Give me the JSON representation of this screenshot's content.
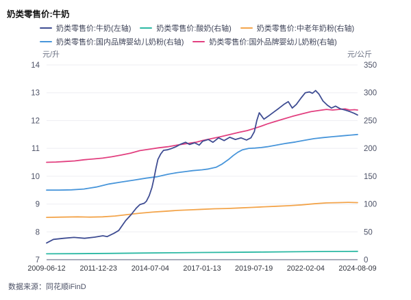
{
  "title": "奶类零售价:牛奶",
  "footer": {
    "source": "数据来源：同花顺iFinD"
  },
  "axes": {
    "left_unit": "元/升",
    "right_unit": "元/公斤",
    "left_ticks": [
      14,
      13,
      12,
      11,
      10,
      9,
      8,
      7
    ],
    "right_ticks": [
      350,
      300,
      250,
      200,
      150,
      100,
      50,
      0
    ],
    "x_ticks": [
      "2009-06-12",
      "2011-12-23",
      "2014-07-04",
      "2017-01-13",
      "2019-07-19",
      "2022-02-04",
      "2024-08-09"
    ]
  },
  "chart_data": {
    "type": "line",
    "title": "奶类零售价:牛奶",
    "xlabel": "",
    "x_tick_labels": [
      "2009-06-12",
      "2011-12-23",
      "2014-07-04",
      "2017-01-13",
      "2019-07-19",
      "2022-02-04",
      "2024-08-09"
    ],
    "x_note": "x encoded as normalized time t (0 = 2009-06-12, 1 = 2024-08-09)",
    "y_left": {
      "label": "元/升",
      "range": [
        7,
        14
      ]
    },
    "y_right": {
      "label": "元/公斤",
      "range": [
        0,
        350
      ]
    },
    "grid": "horizontal",
    "legend_position": "top",
    "series": [
      {
        "name": "奶类零售价:牛奶(左轴)",
        "axis": "left",
        "color": "#3e4c92",
        "points": [
          [
            0,
            7.6
          ],
          [
            0.022,
            7.73
          ],
          [
            0.055,
            7.77
          ],
          [
            0.088,
            7.8
          ],
          [
            0.122,
            7.77
          ],
          [
            0.155,
            7.81
          ],
          [
            0.181,
            7.86
          ],
          [
            0.195,
            7.83
          ],
          [
            0.217,
            7.95
          ],
          [
            0.232,
            8.05
          ],
          [
            0.254,
            8.4
          ],
          [
            0.272,
            8.62
          ],
          [
            0.288,
            8.85
          ],
          [
            0.3,
            8.98
          ],
          [
            0.314,
            9.03
          ],
          [
            0.321,
            9.1
          ],
          [
            0.33,
            9.3
          ],
          [
            0.339,
            9.6
          ],
          [
            0.345,
            9.9
          ],
          [
            0.352,
            10.3
          ],
          [
            0.358,
            10.6
          ],
          [
            0.367,
            10.8
          ],
          [
            0.376,
            10.93
          ],
          [
            0.389,
            10.95
          ],
          [
            0.403,
            11.0
          ],
          [
            0.416,
            11.06
          ],
          [
            0.431,
            11.15
          ],
          [
            0.447,
            11.22
          ],
          [
            0.46,
            11.14
          ],
          [
            0.476,
            11.2
          ],
          [
            0.491,
            11.12
          ],
          [
            0.502,
            11.26
          ],
          [
            0.52,
            11.32
          ],
          [
            0.535,
            11.22
          ],
          [
            0.553,
            11.38
          ],
          [
            0.571,
            11.28
          ],
          [
            0.589,
            11.4
          ],
          [
            0.607,
            11.32
          ],
          [
            0.625,
            11.38
          ],
          [
            0.643,
            11.3
          ],
          [
            0.657,
            11.38
          ],
          [
            0.668,
            11.6
          ],
          [
            0.676,
            12.0
          ],
          [
            0.684,
            12.28
          ],
          [
            0.699,
            12.05
          ],
          [
            0.712,
            12.15
          ],
          [
            0.73,
            12.3
          ],
          [
            0.748,
            12.45
          ],
          [
            0.763,
            12.58
          ],
          [
            0.777,
            12.68
          ],
          [
            0.79,
            12.45
          ],
          [
            0.803,
            12.58
          ],
          [
            0.819,
            12.82
          ],
          [
            0.832,
            13.0
          ],
          [
            0.845,
            13.03
          ],
          [
            0.855,
            12.98
          ],
          [
            0.865,
            13.08
          ],
          [
            0.876,
            12.95
          ],
          [
            0.889,
            12.7
          ],
          [
            0.903,
            12.55
          ],
          [
            0.916,
            12.45
          ],
          [
            0.929,
            12.52
          ],
          [
            0.945,
            12.42
          ],
          [
            0.96,
            12.38
          ],
          [
            0.976,
            12.32
          ],
          [
            0.989,
            12.26
          ],
          [
            1,
            12.2
          ]
        ]
      },
      {
        "name": "奶类零售价:酸奶(右轴)",
        "axis": "right",
        "color": "#2bb8a3",
        "points": [
          [
            0,
            10.5
          ],
          [
            0.1,
            10.8
          ],
          [
            0.2,
            11.3
          ],
          [
            0.3,
            11.9
          ],
          [
            0.4,
            12.4
          ],
          [
            0.5,
            12.9
          ],
          [
            0.6,
            13.3
          ],
          [
            0.7,
            13.8
          ],
          [
            0.8,
            14.3
          ],
          [
            0.9,
            14.7
          ],
          [
            1,
            15
          ]
        ]
      },
      {
        "name": "奶类零售价:中老年奶粉(右轴)",
        "axis": "right",
        "color": "#f3a44a",
        "points": [
          [
            0,
            76
          ],
          [
            0.05,
            76.5
          ],
          [
            0.1,
            77
          ],
          [
            0.14,
            76.5
          ],
          [
            0.18,
            77
          ],
          [
            0.22,
            78.5
          ],
          [
            0.26,
            81
          ],
          [
            0.3,
            83.5
          ],
          [
            0.34,
            85.5
          ],
          [
            0.38,
            87
          ],
          [
            0.42,
            88.5
          ],
          [
            0.46,
            89.5
          ],
          [
            0.5,
            90.5
          ],
          [
            0.54,
            91.5
          ],
          [
            0.58,
            92
          ],
          [
            0.62,
            93
          ],
          [
            0.66,
            94
          ],
          [
            0.7,
            95
          ],
          [
            0.74,
            96
          ],
          [
            0.78,
            97
          ],
          [
            0.82,
            98.5
          ],
          [
            0.86,
            100.5
          ],
          [
            0.9,
            102
          ],
          [
            0.94,
            102.5
          ],
          [
            0.97,
            103
          ],
          [
            1,
            102.5
          ]
        ]
      },
      {
        "name": "奶类零售价:国内品牌婴幼儿奶粉(右轴)",
        "axis": "right",
        "color": "#4795da",
        "points": [
          [
            0,
            125
          ],
          [
            0.04,
            125
          ],
          [
            0.08,
            125.5
          ],
          [
            0.12,
            127
          ],
          [
            0.16,
            130.5
          ],
          [
            0.2,
            136
          ],
          [
            0.24,
            139.5
          ],
          [
            0.28,
            143
          ],
          [
            0.32,
            146.5
          ],
          [
            0.354,
            149
          ],
          [
            0.39,
            153.5
          ],
          [
            0.42,
            156.5
          ],
          [
            0.45,
            158.5
          ],
          [
            0.47,
            160
          ],
          [
            0.5,
            161.5
          ],
          [
            0.52,
            163
          ],
          [
            0.545,
            166
          ],
          [
            0.565,
            172
          ],
          [
            0.585,
            180
          ],
          [
            0.6,
            187
          ],
          [
            0.615,
            193
          ],
          [
            0.63,
            197.5
          ],
          [
            0.65,
            200
          ],
          [
            0.67,
            200.5
          ],
          [
            0.69,
            201.5
          ],
          [
            0.71,
            203
          ],
          [
            0.74,
            206
          ],
          [
            0.77,
            209
          ],
          [
            0.8,
            211.5
          ],
          [
            0.83,
            214.5
          ],
          [
            0.86,
            217.5
          ],
          [
            0.89,
            219.5
          ],
          [
            0.92,
            221
          ],
          [
            0.95,
            222.5
          ],
          [
            0.98,
            224
          ],
          [
            1,
            225
          ]
        ]
      },
      {
        "name": "奶类零售价:国外品牌婴幼儿奶粉(右轴)",
        "axis": "right",
        "color": "#e23f7f",
        "points": [
          [
            0,
            175
          ],
          [
            0.03,
            175.5
          ],
          [
            0.06,
            176.5
          ],
          [
            0.09,
            177.5
          ],
          [
            0.12,
            179.5
          ],
          [
            0.15,
            181
          ],
          [
            0.18,
            182.5
          ],
          [
            0.21,
            185
          ],
          [
            0.24,
            188
          ],
          [
            0.27,
            191.5
          ],
          [
            0.3,
            196
          ],
          [
            0.33,
            198.5
          ],
          [
            0.36,
            201
          ],
          [
            0.39,
            203
          ],
          [
            0.42,
            206
          ],
          [
            0.45,
            208.5
          ],
          [
            0.48,
            211
          ],
          [
            0.5,
            214
          ],
          [
            0.53,
            217.5
          ],
          [
            0.56,
            221
          ],
          [
            0.59,
            225
          ],
          [
            0.62,
            229
          ],
          [
            0.645,
            232
          ],
          [
            0.666,
            235.5
          ],
          [
            0.69,
            240
          ],
          [
            0.71,
            244
          ],
          [
            0.73,
            247.5
          ],
          [
            0.76,
            252.5
          ],
          [
            0.79,
            257.5
          ],
          [
            0.82,
            262
          ],
          [
            0.85,
            266
          ],
          [
            0.88,
            268.5
          ],
          [
            0.9,
            270
          ],
          [
            0.92,
            269
          ],
          [
            0.94,
            270
          ],
          [
            0.96,
            271
          ],
          [
            0.975,
            269
          ],
          [
            0.99,
            269.5
          ],
          [
            1,
            269
          ]
        ]
      }
    ]
  },
  "style": {
    "grid_color": "#ededf2",
    "axis_color": "#a8acba",
    "y_tick_color": "#4c5166",
    "x_tick_color": "#32353e"
  }
}
